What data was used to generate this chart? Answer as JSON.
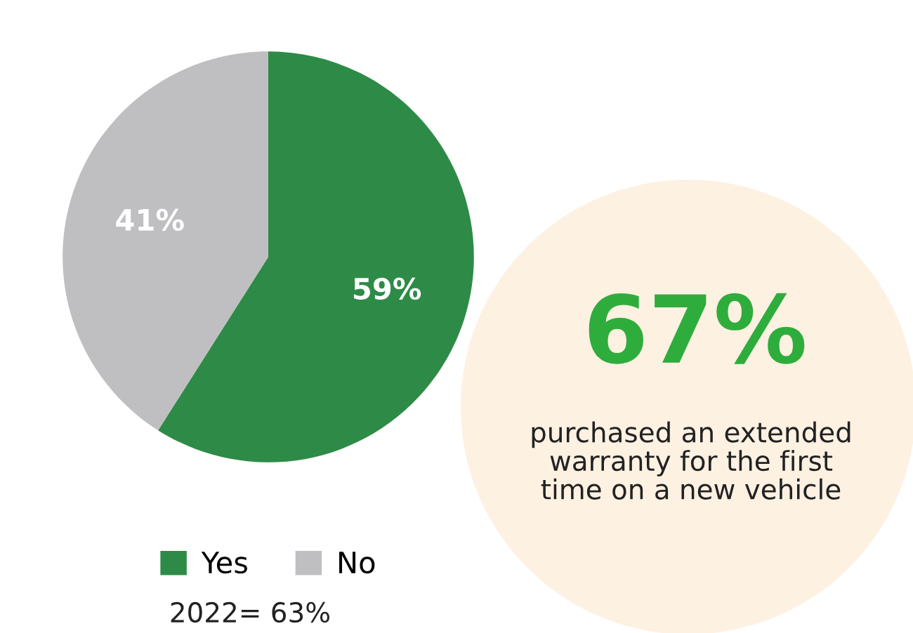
{
  "chart_data": {
    "type": "pie",
    "categories": [
      "Yes",
      "No"
    ],
    "values": [
      59,
      41
    ],
    "colors": [
      "#2e8b47",
      "#bfbfc1"
    ],
    "value_labels": [
      "59%",
      "41%"
    ],
    "legend": "bottom",
    "annotations": [
      "67%",
      "purchased an extended\nwarranty for the first\ntime on a new vehicle",
      "2022= 63%"
    ]
  }
}
